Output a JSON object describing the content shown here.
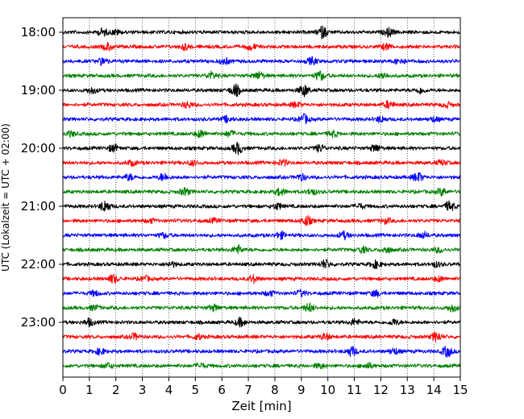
{
  "chart_data": {
    "type": "line",
    "title": "",
    "xlabel": "Zeit  [min]",
    "ylabel": "UTC (Lokalzeit = UTC + 02:00)",
    "xlim": [
      0,
      15
    ],
    "x_ticks": [
      "0",
      "1",
      "2",
      "3",
      "4",
      "5",
      "6",
      "7",
      "8",
      "9",
      "10",
      "11",
      "12",
      "13",
      "14",
      "15"
    ],
    "y_ticks": [
      "18:00",
      "19:00",
      "20:00",
      "21:00",
      "22:00",
      "23:00"
    ],
    "grid": "vertical dotted",
    "trace_colors": [
      "#000000",
      "#ff0000",
      "#0000ff",
      "#008000"
    ],
    "series": [
      {
        "start": "18:00",
        "color": "#000000",
        "events": [
          [
            1.5,
            0.6
          ],
          [
            2.0,
            0.4
          ],
          [
            9.8,
            1.0
          ],
          [
            12.3,
            0.7
          ]
        ]
      },
      {
        "start": "18:15",
        "color": "#ff0000",
        "events": [
          [
            1.7,
            0.6
          ],
          [
            4.6,
            0.5
          ],
          [
            7.1,
            0.5
          ],
          [
            12.2,
            0.5
          ]
        ]
      },
      {
        "start": "18:30",
        "color": "#0000ff",
        "events": [
          [
            1.5,
            0.6
          ],
          [
            6.1,
            0.5
          ],
          [
            9.4,
            0.6
          ],
          [
            12.7,
            0.5
          ]
        ]
      },
      {
        "start": "18:45",
        "color": "#008000",
        "events": [
          [
            5.6,
            0.6
          ],
          [
            7.4,
            0.6
          ],
          [
            9.7,
            0.8
          ],
          [
            12.1,
            0.5
          ]
        ]
      },
      {
        "start": "19:00",
        "color": "#000000",
        "events": [
          [
            1.1,
            0.5
          ],
          [
            6.5,
            1.0
          ],
          [
            9.1,
            1.0
          ],
          [
            13.5,
            0.5
          ]
        ]
      },
      {
        "start": "19:15",
        "color": "#ff0000",
        "events": [
          [
            4.7,
            0.5
          ],
          [
            8.8,
            0.4
          ],
          [
            12.3,
            0.6
          ],
          [
            14.5,
            0.4
          ]
        ]
      },
      {
        "start": "19:30",
        "color": "#0000ff",
        "events": [
          [
            6.2,
            0.5
          ],
          [
            9.1,
            0.8
          ],
          [
            12.0,
            0.5
          ],
          [
            14.0,
            0.4
          ]
        ]
      },
      {
        "start": "19:45",
        "color": "#008000",
        "events": [
          [
            0.3,
            0.4
          ],
          [
            5.2,
            0.6
          ],
          [
            6.3,
            0.5
          ],
          [
            10.2,
            0.5
          ]
        ]
      },
      {
        "start": "20:00",
        "color": "#000000",
        "events": [
          [
            1.9,
            0.6
          ],
          [
            6.6,
            1.0
          ],
          [
            9.7,
            0.6
          ],
          [
            11.8,
            0.6
          ]
        ]
      },
      {
        "start": "20:15",
        "color": "#ff0000",
        "events": [
          [
            2.6,
            0.4
          ],
          [
            4.9,
            0.4
          ],
          [
            8.3,
            0.5
          ],
          [
            14.3,
            0.4
          ]
        ]
      },
      {
        "start": "20:30",
        "color": "#0000ff",
        "events": [
          [
            2.5,
            0.5
          ],
          [
            3.8,
            0.6
          ],
          [
            9.0,
            0.5
          ],
          [
            13.4,
            0.8
          ]
        ]
      },
      {
        "start": "20:45",
        "color": "#008000",
        "events": [
          [
            4.6,
            0.6
          ],
          [
            8.2,
            0.6
          ],
          [
            9.4,
            0.5
          ],
          [
            14.3,
            0.6
          ]
        ]
      },
      {
        "start": "21:00",
        "color": "#000000",
        "events": [
          [
            1.6,
            1.0
          ],
          [
            8.1,
            0.5
          ],
          [
            11.2,
            0.4
          ],
          [
            14.6,
            0.8
          ]
        ]
      },
      {
        "start": "21:15",
        "color": "#ff0000",
        "events": [
          [
            3.3,
            0.3
          ],
          [
            5.7,
            0.3
          ],
          [
            9.2,
            0.8
          ],
          [
            12.2,
            0.4
          ]
        ]
      },
      {
        "start": "21:30",
        "color": "#0000ff",
        "events": [
          [
            3.8,
            0.4
          ],
          [
            8.2,
            0.6
          ],
          [
            10.6,
            0.6
          ],
          [
            13.6,
            0.5
          ]
        ]
      },
      {
        "start": "21:45",
        "color": "#008000",
        "events": [
          [
            6.6,
            0.7
          ],
          [
            11.3,
            0.5
          ],
          [
            12.2,
            0.5
          ],
          [
            14.2,
            0.4
          ]
        ]
      },
      {
        "start": "22:00",
        "color": "#000000",
        "events": [
          [
            4.1,
            0.4
          ],
          [
            9.9,
            0.7
          ],
          [
            11.8,
            0.6
          ],
          [
            14.1,
            0.4
          ]
        ]
      },
      {
        "start": "22:15",
        "color": "#ff0000",
        "events": [
          [
            1.9,
            0.7
          ],
          [
            3.1,
            0.4
          ],
          [
            7.2,
            0.6
          ],
          [
            14.2,
            0.4
          ]
        ]
      },
      {
        "start": "22:30",
        "color": "#0000ff",
        "events": [
          [
            1.2,
            0.4
          ],
          [
            7.8,
            0.4
          ],
          [
            9.0,
            0.5
          ],
          [
            11.8,
            0.5
          ]
        ]
      },
      {
        "start": "22:45",
        "color": "#008000",
        "events": [
          [
            1.2,
            0.4
          ],
          [
            5.7,
            0.5
          ],
          [
            9.3,
            0.7
          ],
          [
            14.7,
            0.6
          ]
        ]
      },
      {
        "start": "23:00",
        "color": "#000000",
        "events": [
          [
            1.0,
            0.6
          ],
          [
            6.7,
            0.7
          ],
          [
            11.0,
            0.5
          ],
          [
            12.5,
            0.5
          ]
        ]
      },
      {
        "start": "23:15",
        "color": "#ff0000",
        "events": [
          [
            2.7,
            0.5
          ],
          [
            5.1,
            0.4
          ],
          [
            9.9,
            0.5
          ],
          [
            14.1,
            0.8
          ]
        ]
      },
      {
        "start": "23:30",
        "color": "#0000ff",
        "events": [
          [
            1.4,
            0.5
          ],
          [
            10.9,
            0.8
          ],
          [
            12.5,
            0.5
          ],
          [
            14.5,
            0.9
          ]
        ]
      },
      {
        "start": "23:45",
        "color": "#008000",
        "events": [
          [
            1.7,
            0.4
          ],
          [
            5.2,
            0.4
          ],
          [
            9.7,
            0.4
          ],
          [
            11.5,
            0.5
          ]
        ]
      }
    ]
  }
}
